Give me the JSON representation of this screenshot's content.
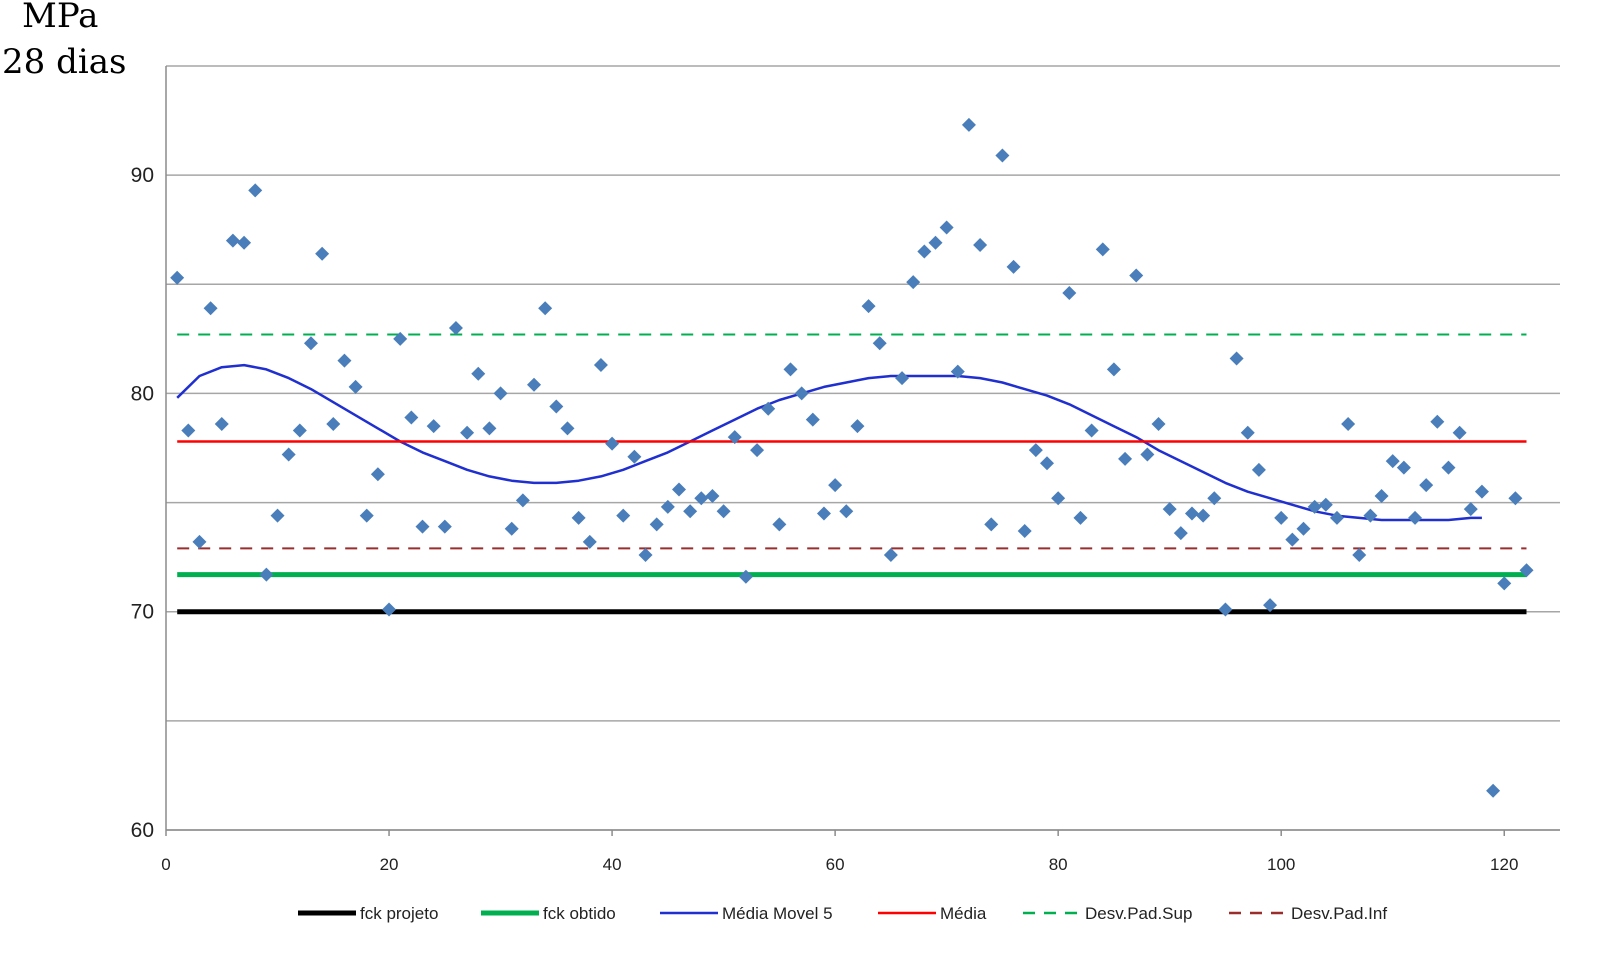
{
  "chart_data": {
    "type": "scatter",
    "ylabel_lines": [
      "MPa",
      "28 dias"
    ],
    "xlim": [
      0,
      125
    ],
    "ylim": [
      60,
      95
    ],
    "xticks": [
      0,
      20,
      40,
      60,
      80,
      100,
      120
    ],
    "yticks_labeled": [
      60,
      70,
      80,
      90
    ],
    "ygrid": [
      60,
      65,
      70,
      75,
      80,
      85,
      90,
      95
    ],
    "grid": "horizontal",
    "legend_position": "bottom",
    "points": {
      "color": "#4a7ebb",
      "x": [
        1,
        2,
        3,
        4,
        5,
        6,
        7,
        8,
        9,
        10,
        11,
        12,
        13,
        14,
        15,
        16,
        17,
        18,
        19,
        20,
        21,
        22,
        23,
        24,
        25,
        26,
        27,
        28,
        29,
        30,
        31,
        32,
        33,
        34,
        35,
        36,
        37,
        38,
        39,
        40,
        41,
        42,
        43,
        44,
        45,
        46,
        47,
        48,
        49,
        50,
        51,
        52,
        53,
        54,
        55,
        56,
        57,
        58,
        59,
        60,
        61,
        62,
        63,
        64,
        65,
        66,
        67,
        68,
        69,
        70,
        71,
        72,
        73,
        74,
        75,
        76,
        77,
        78,
        79,
        80,
        81,
        82,
        83,
        84,
        85,
        86,
        87,
        88,
        89,
        90,
        91,
        92,
        93,
        94,
        95,
        96,
        97,
        98,
        99,
        100,
        101,
        102,
        103,
        104,
        105,
        106,
        107,
        108,
        109,
        110,
        111,
        112,
        113,
        114,
        115,
        116,
        117,
        118,
        119,
        120,
        121,
        122
      ],
      "y": [
        85.3,
        78.3,
        73.2,
        83.9,
        78.6,
        87.0,
        86.9,
        89.3,
        71.7,
        74.4,
        77.2,
        78.3,
        82.3,
        86.4,
        78.6,
        81.5,
        80.3,
        74.4,
        76.3,
        70.1,
        82.5,
        78.9,
        73.9,
        78.5,
        73.9,
        83.0,
        78.2,
        80.9,
        78.4,
        80.0,
        73.8,
        75.1,
        80.4,
        83.9,
        79.4,
        78.4,
        74.3,
        73.2,
        81.3,
        77.7,
        74.4,
        77.1,
        72.6,
        74.0,
        74.8,
        75.6,
        74.6,
        75.2,
        75.3,
        74.6,
        78.0,
        71.6,
        77.4,
        79.3,
        74.0,
        81.1,
        80.0,
        78.8,
        74.5,
        75.8,
        74.6,
        78.5,
        84.0,
        82.3,
        72.6,
        80.7,
        85.1,
        86.5,
        86.9,
        87.6,
        81.0,
        92.3,
        86.8,
        74.0,
        90.9,
        85.8,
        73.7,
        77.4,
        76.8,
        75.2,
        84.6,
        74.3,
        78.3,
        86.6,
        81.1,
        77.0,
        85.4,
        77.2,
        78.6,
        74.7,
        73.6,
        74.5,
        74.4,
        75.2,
        70.1,
        81.6,
        78.2,
        76.5,
        70.3,
        74.3,
        73.3,
        73.8,
        74.8,
        74.9,
        74.3,
        78.6,
        72.6,
        74.4,
        75.3,
        76.9,
        76.6,
        74.3,
        75.8,
        78.7,
        76.6,
        78.2,
        74.7,
        75.5,
        61.8,
        71.3,
        75.2,
        71.9
      ]
    },
    "series": [
      {
        "name": "fck projeto",
        "color": "#000000",
        "style": "solid",
        "width": 5,
        "x": [
          1,
          122
        ],
        "y": [
          70.0,
          70.0
        ]
      },
      {
        "name": "fck obtido",
        "color": "#00b050",
        "style": "solid",
        "width": 5,
        "x": [
          1,
          122
        ],
        "y": [
          71.7,
          71.7
        ]
      },
      {
        "name": "Média Movel 5",
        "color": "#1f2fd0",
        "style": "solid",
        "width": 2.5,
        "x": [
          1,
          3,
          5,
          7,
          9,
          11,
          13,
          15,
          17,
          19,
          21,
          23,
          25,
          27,
          29,
          31,
          33,
          35,
          37,
          39,
          41,
          43,
          45,
          47,
          49,
          51,
          53,
          55,
          57,
          59,
          61,
          63,
          65,
          67,
          69,
          71,
          73,
          75,
          77,
          79,
          81,
          83,
          85,
          87,
          89,
          91,
          93,
          95,
          97,
          99,
          101,
          103,
          105,
          107,
          109,
          111,
          113,
          115,
          117,
          118
        ],
        "y": [
          79.8,
          80.8,
          81.2,
          81.3,
          81.1,
          80.7,
          80.2,
          79.6,
          79.0,
          78.4,
          77.8,
          77.3,
          76.9,
          76.5,
          76.2,
          76.0,
          75.9,
          75.9,
          76.0,
          76.2,
          76.5,
          76.9,
          77.3,
          77.8,
          78.3,
          78.8,
          79.3,
          79.7,
          80.0,
          80.3,
          80.5,
          80.7,
          80.8,
          80.8,
          80.8,
          80.8,
          80.7,
          80.5,
          80.2,
          79.9,
          79.5,
          79.0,
          78.5,
          78.0,
          77.4,
          76.9,
          76.4,
          75.9,
          75.5,
          75.2,
          74.9,
          74.6,
          74.4,
          74.3,
          74.2,
          74.2,
          74.2,
          74.2,
          74.3,
          74.3
        ]
      },
      {
        "name": "Média",
        "color": "#ff0000",
        "style": "solid",
        "width": 2.5,
        "x": [
          1,
          122
        ],
        "y": [
          77.8,
          77.8
        ]
      },
      {
        "name": "Desv.Pad.Sup",
        "color": "#00b050",
        "style": "dashed",
        "width": 2,
        "x": [
          1,
          122
        ],
        "y": [
          82.7,
          82.7
        ]
      },
      {
        "name": "Desv.Pad.Inf",
        "color": "#9b2d2d",
        "style": "dashed",
        "width": 2,
        "x": [
          1,
          122
        ],
        "y": [
          72.9,
          72.9
        ]
      }
    ]
  }
}
